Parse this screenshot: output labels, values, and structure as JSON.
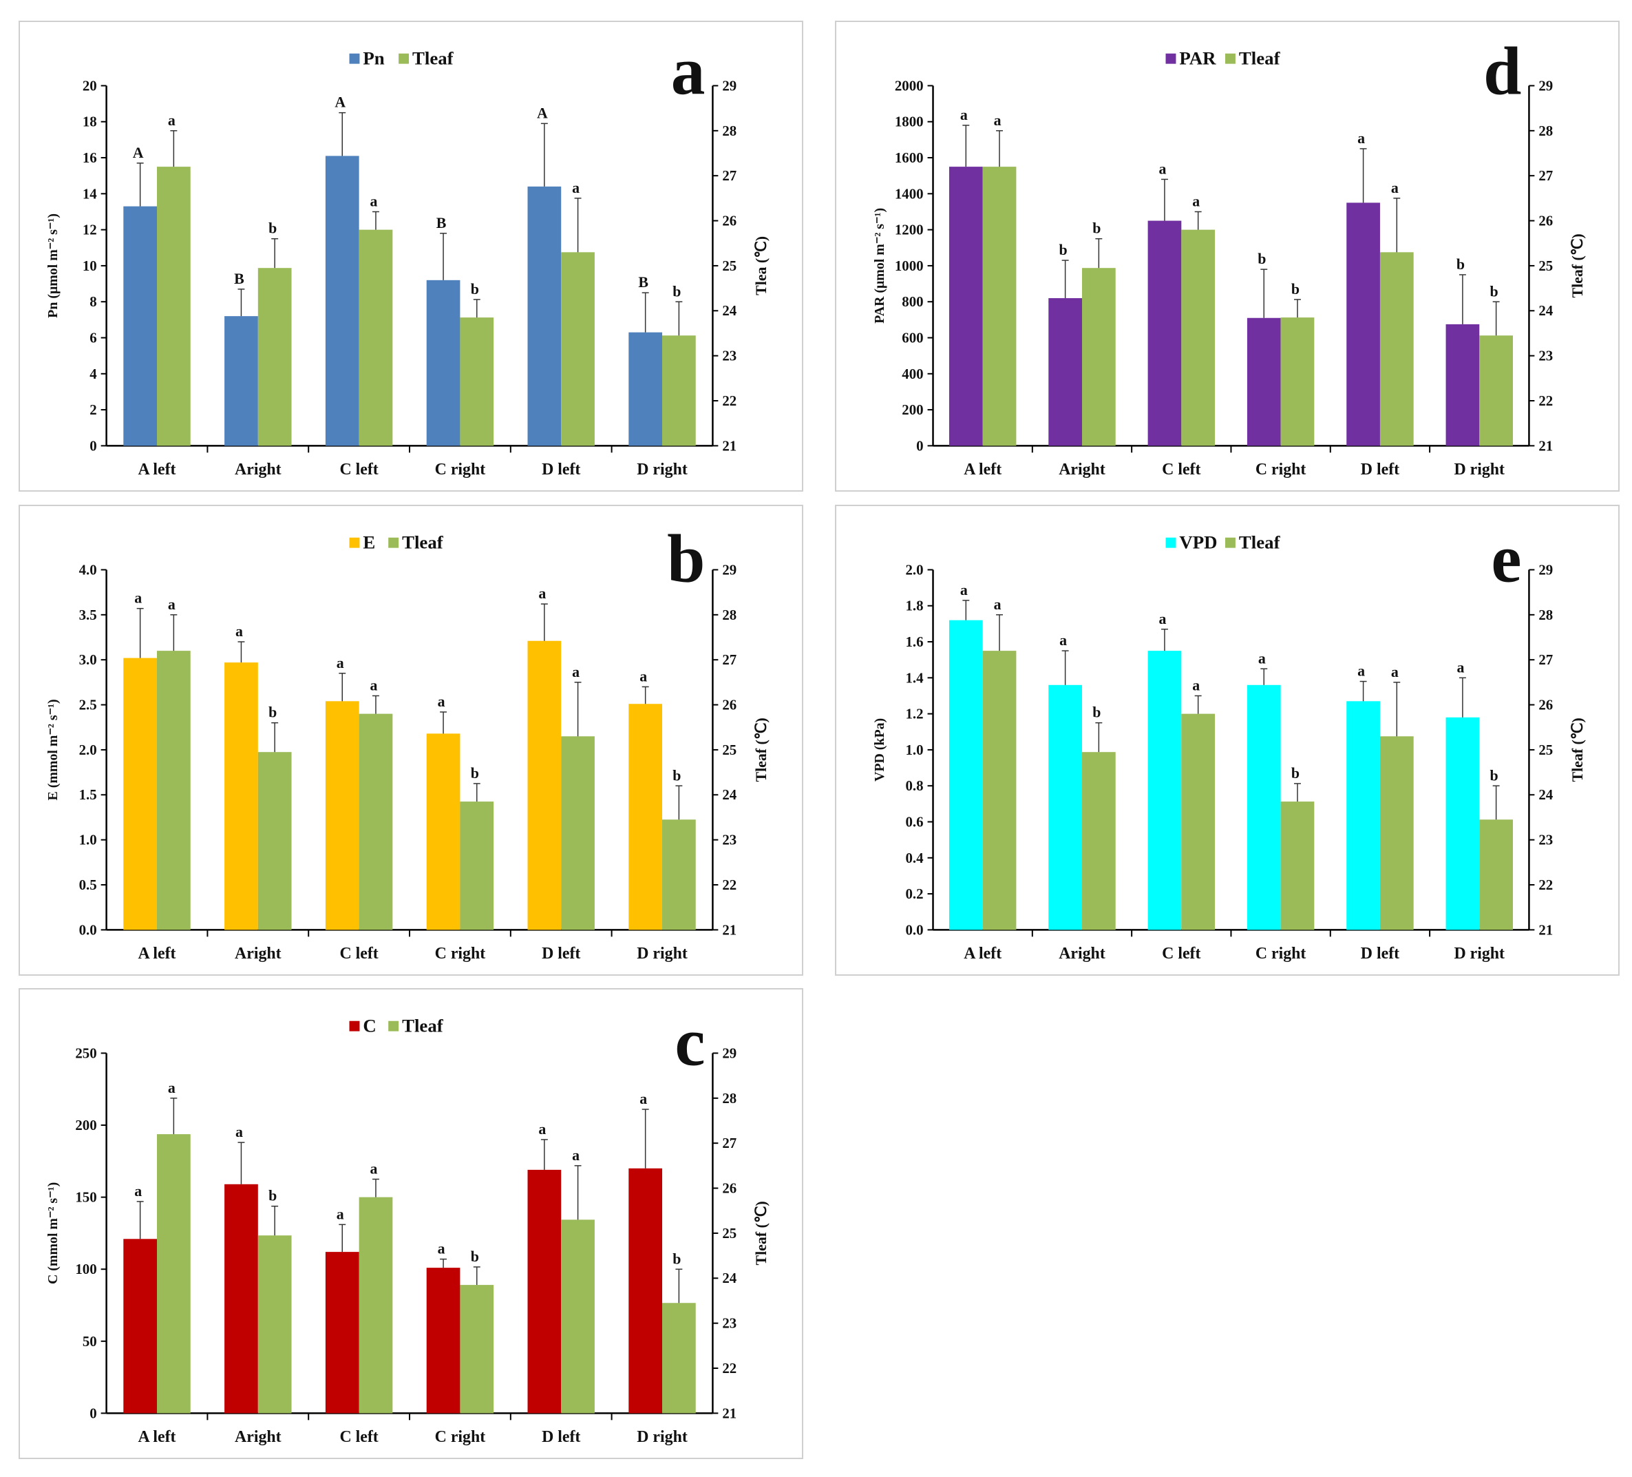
{
  "categories": [
    "A left",
    "Aright",
    "C left",
    "C right",
    "D left",
    "D right"
  ],
  "colors": {
    "Pn": "#4f81bd",
    "Tleaf": "#9bbb59",
    "PAR": "#7030a0",
    "E": "#ffc000",
    "VPD": "#00ffff",
    "C": "#c00000"
  },
  "chart_data": [
    {
      "id": "a",
      "type": "bar",
      "panel_label": "a",
      "ylabel": "Pn (μmol m⁻² s⁻¹)",
      "y2label": "Tlea (℃)",
      "ylim": [
        0,
        20
      ],
      "yticks": [
        "0",
        "2",
        "4",
        "6",
        "8",
        "10",
        "12",
        "14",
        "16",
        "18",
        "20"
      ],
      "y2lim": [
        21,
        29
      ],
      "y2ticks": [
        "21",
        "22",
        "23",
        "24",
        "25",
        "26",
        "27",
        "28",
        "29"
      ],
      "series": [
        {
          "name": "Pn",
          "color": "#4f81bd",
          "values": [
            13.3,
            7.2,
            16.1,
            9.2,
            14.4,
            6.3
          ],
          "err_top": [
            15.7,
            8.7,
            18.5,
            11.8,
            17.9,
            8.5
          ],
          "letters": [
            "A",
            "B",
            "A",
            "B",
            "A",
            "B"
          ]
        },
        {
          "name": "Tleaf",
          "color": "#9bbb59",
          "axis": "right",
          "values": [
            27.2,
            24.95,
            25.8,
            23.85,
            25.3,
            23.45
          ],
          "err_top": [
            28.0,
            25.6,
            26.2,
            24.25,
            26.5,
            24.2
          ],
          "letters": [
            "a",
            "b",
            "a",
            "b",
            "a",
            "b"
          ]
        }
      ]
    },
    {
      "id": "d",
      "type": "bar",
      "panel_label": "d",
      "ylabel": "PAR (μmol m⁻² s⁻¹)",
      "y2label": "Tleaf (℃)",
      "ylim": [
        0,
        2000
      ],
      "yticks": [
        "0",
        "200",
        "400",
        "600",
        "800",
        "1000",
        "1200",
        "1400",
        "1600",
        "1800",
        "2000"
      ],
      "y2lim": [
        21,
        29
      ],
      "y2ticks": [
        "21",
        "22",
        "23",
        "24",
        "25",
        "26",
        "27",
        "28",
        "29"
      ],
      "series": [
        {
          "name": "PAR",
          "color": "#7030a0",
          "values": [
            1550,
            820,
            1250,
            710,
            1350,
            675
          ],
          "err_top": [
            1780,
            1030,
            1480,
            980,
            1650,
            950
          ],
          "letters": [
            "a",
            "b",
            "a",
            "b",
            "a",
            "b"
          ]
        },
        {
          "name": "Tleaf",
          "color": "#9bbb59",
          "axis": "right",
          "values": [
            27.2,
            24.95,
            25.8,
            23.85,
            25.3,
            23.45
          ],
          "err_top": [
            28.0,
            25.6,
            26.2,
            24.25,
            26.5,
            24.2
          ],
          "letters": [
            "a",
            "b",
            "a",
            "b",
            "a",
            "b"
          ]
        }
      ]
    },
    {
      "id": "b",
      "type": "bar",
      "panel_label": "b",
      "ylabel": "E (mmol m⁻² s⁻¹)",
      "y2label": "Tleaf (℃)",
      "ylim": [
        0,
        4
      ],
      "yticks": [
        "0.0",
        "0.5",
        "1.0",
        "1.5",
        "2.0",
        "2.5",
        "3.0",
        "3.5",
        "4.0"
      ],
      "y2lim": [
        21,
        29
      ],
      "y2ticks": [
        "21",
        "22",
        "23",
        "24",
        "25",
        "26",
        "27",
        "28",
        "29"
      ],
      "series": [
        {
          "name": "E",
          "color": "#ffc000",
          "values": [
            3.02,
            2.97,
            2.54,
            2.18,
            3.21,
            2.51
          ],
          "err_top": [
            3.57,
            3.2,
            2.85,
            2.42,
            3.62,
            2.7
          ],
          "letters": [
            "a",
            "a",
            "a",
            "a",
            "a",
            "a"
          ]
        },
        {
          "name": "Tleaf",
          "color": "#9bbb59",
          "axis": "right",
          "values": [
            27.2,
            24.95,
            25.8,
            23.85,
            25.3,
            23.45
          ],
          "err_top": [
            28.0,
            25.6,
            26.2,
            24.25,
            26.5,
            24.2
          ],
          "letters": [
            "a",
            "b",
            "a",
            "b",
            "a",
            "b"
          ]
        }
      ]
    },
    {
      "id": "e",
      "type": "bar",
      "panel_label": "e",
      "ylabel": "VPD (kPa)",
      "y2label": "Tleaf (℃)",
      "ylim": [
        0,
        2
      ],
      "yticks": [
        "0.0",
        "0.2",
        "0.4",
        "0.6",
        "0.8",
        "1.0",
        "1.2",
        "1.4",
        "1.6",
        "1.8",
        "2.0"
      ],
      "y2lim": [
        21,
        29
      ],
      "y2ticks": [
        "21",
        "22",
        "23",
        "24",
        "25",
        "26",
        "27",
        "28",
        "29"
      ],
      "series": [
        {
          "name": "VPD",
          "color": "#00ffff",
          "values": [
            1.72,
            1.36,
            1.55,
            1.36,
            1.27,
            1.18
          ],
          "err_top": [
            1.83,
            1.55,
            1.67,
            1.45,
            1.38,
            1.4
          ],
          "letters": [
            "a",
            "a",
            "a",
            "a",
            "a",
            "a"
          ]
        },
        {
          "name": "Tleaf",
          "color": "#9bbb59",
          "axis": "right",
          "values": [
            27.2,
            24.95,
            25.8,
            23.85,
            25.3,
            23.45
          ],
          "err_top": [
            28.0,
            25.6,
            26.2,
            24.25,
            26.5,
            24.2
          ],
          "letters": [
            "a",
            "b",
            "a",
            "b",
            "a",
            "b"
          ]
        }
      ]
    },
    {
      "id": "c",
      "type": "bar",
      "panel_label": "c",
      "ylabel": "C (mmol m⁻² s⁻¹)",
      "y2label": "Tleaf (℃)",
      "ylim": [
        0,
        250
      ],
      "yticks": [
        "0",
        "50",
        "100",
        "150",
        "200",
        "250"
      ],
      "y2lim": [
        21,
        29
      ],
      "y2ticks": [
        "21",
        "22",
        "23",
        "24",
        "25",
        "26",
        "27",
        "28",
        "29"
      ],
      "series": [
        {
          "name": "C",
          "color": "#c00000",
          "values": [
            121,
            159,
            112,
            101,
            169,
            170
          ],
          "err_top": [
            147,
            188,
            131,
            107,
            190,
            211
          ],
          "letters": [
            "a",
            "a",
            "a",
            "a",
            "a",
            "a"
          ]
        },
        {
          "name": "Tleaf",
          "color": "#9bbb59",
          "axis": "right",
          "values": [
            27.2,
            24.95,
            25.8,
            23.85,
            25.3,
            23.45
          ],
          "err_top": [
            28.0,
            25.6,
            26.2,
            24.25,
            26.5,
            24.2
          ],
          "letters": [
            "a",
            "b",
            "a",
            "b",
            "a",
            "b"
          ]
        }
      ]
    }
  ]
}
